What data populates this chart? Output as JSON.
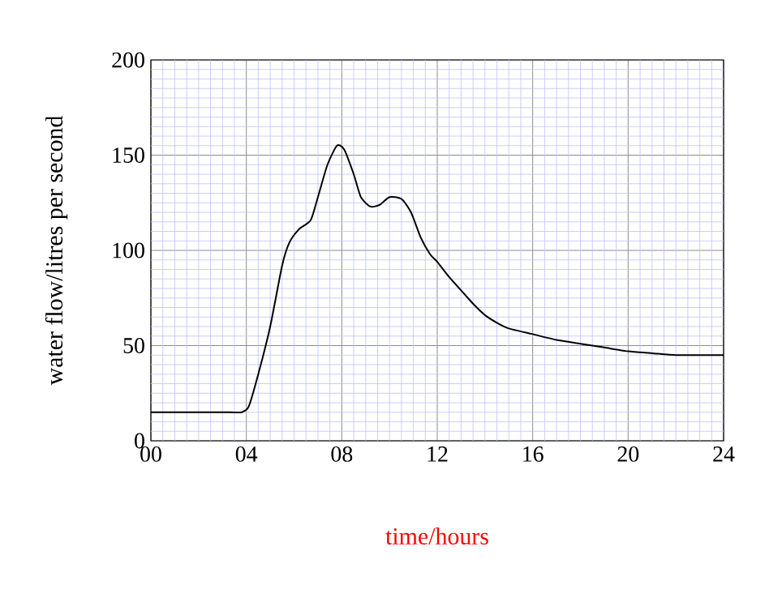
{
  "chart_data": {
    "type": "line",
    "xlabel": "time/hours",
    "ylabel": "water flow/litres per second",
    "x": [
      0,
      2,
      3.3,
      3.8,
      4.1,
      4.5,
      5,
      5.5,
      5.8,
      6.2,
      6.7,
      7,
      7.4,
      7.8,
      8.1,
      8.5,
      8.8,
      9.2,
      9.6,
      10,
      10.5,
      10.9,
      11.3,
      11.7,
      12,
      12.5,
      13,
      13.5,
      14,
      14.5,
      15,
      16,
      17,
      18,
      19,
      20,
      21,
      22,
      23,
      24
    ],
    "series": [
      {
        "color": "#000000",
        "values": [
          15,
          15,
          15,
          15,
          18,
          35,
          60,
          92,
          104,
          111,
          116,
          128,
          145,
          155,
          153,
          140,
          128,
          123,
          124,
          128,
          127,
          120,
          107,
          98,
          94,
          86,
          79,
          72,
          66,
          62,
          59,
          56,
          53,
          51,
          49,
          47,
          46,
          45,
          45,
          45
        ]
      }
    ],
    "xlim": [
      0,
      24
    ],
    "ylim": [
      0,
      200
    ],
    "xticks": [
      {
        "value": 0,
        "label": "00"
      },
      {
        "value": 0.5,
        "label": null
      },
      {
        "value": 1,
        "label": null
      },
      {
        "value": 1.5,
        "label": null
      },
      {
        "value": 2,
        "label": null
      },
      {
        "value": 2.5,
        "label": null
      },
      {
        "value": 3,
        "label": null
      },
      {
        "value": 3.5,
        "label": null
      },
      {
        "value": 4,
        "label": "04"
      },
      {
        "value": 4.5,
        "label": null
      },
      {
        "value": 5,
        "label": null
      },
      {
        "value": 5.5,
        "label": null
      },
      {
        "value": 6,
        "label": null
      },
      {
        "value": 6.5,
        "label": null
      },
      {
        "value": 7,
        "label": null
      },
      {
        "value": 7.5,
        "label": null
      },
      {
        "value": 8,
        "label": "08"
      },
      {
        "value": 8.5,
        "label": null
      },
      {
        "value": 9,
        "label": null
      },
      {
        "value": 9.5,
        "label": null
      },
      {
        "value": 10,
        "label": null
      },
      {
        "value": 10.5,
        "label": null
      },
      {
        "value": 11,
        "label": null
      },
      {
        "value": 11.5,
        "label": null
      },
      {
        "value": 12,
        "label": "12"
      },
      {
        "value": 12.5,
        "label": null
      },
      {
        "value": 13,
        "label": null
      },
      {
        "value": 13.5,
        "label": null
      },
      {
        "value": 14,
        "label": null
      },
      {
        "value": 14.5,
        "label": null
      },
      {
        "value": 15,
        "label": null
      },
      {
        "value": 15.5,
        "label": null
      },
      {
        "value": 16,
        "label": "16"
      },
      {
        "value": 16.5,
        "label": null
      },
      {
        "value": 17,
        "label": null
      },
      {
        "value": 17.5,
        "label": null
      },
      {
        "value": 18,
        "label": null
      },
      {
        "value": 18.5,
        "label": null
      },
      {
        "value": 19,
        "label": null
      },
      {
        "value": 19.5,
        "label": null
      },
      {
        "value": 20,
        "label": "20"
      },
      {
        "value": 20.5,
        "label": null
      },
      {
        "value": 21,
        "label": null
      },
      {
        "value": 21.5,
        "label": null
      },
      {
        "value": 22,
        "label": null
      },
      {
        "value": 22.5,
        "label": null
      },
      {
        "value": 23,
        "label": null
      },
      {
        "value": 23.5,
        "label": null
      },
      {
        "value": 24,
        "label": "24"
      }
    ],
    "yticks": [
      0,
      {
        "value": 5,
        "label": null
      },
      {
        "value": 10,
        "label": null
      },
      {
        "value": 15,
        "label": null
      },
      {
        "value": 20,
        "label": null
      },
      {
        "value": 25,
        "label": null
      },
      {
        "value": 30,
        "label": null
      },
      {
        "value": 35,
        "label": null
      },
      {
        "value": 40,
        "label": null
      },
      {
        "value": 45,
        "label": null
      },
      50,
      {
        "value": 55,
        "label": null
      },
      {
        "value": 60,
        "label": null
      },
      {
        "value": 65,
        "label": null
      },
      {
        "value": 70,
        "label": null
      },
      {
        "value": 75,
        "label": null
      },
      {
        "value": 80,
        "label": null
      },
      {
        "value": 85,
        "label": null
      },
      {
        "value": 90,
        "label": null
      },
      {
        "value": 95,
        "label": null
      },
      100,
      {
        "value": 105,
        "label": null
      },
      {
        "value": 110,
        "label": null
      },
      {
        "value": 115,
        "label": null
      },
      {
        "value": 120,
        "label": null
      },
      {
        "value": 125,
        "label": null
      },
      {
        "value": 130,
        "label": null
      },
      {
        "value": 135,
        "label": null
      },
      {
        "value": 140,
        "label": null
      },
      {
        "value": 145,
        "label": null
      },
      150,
      {
        "value": 155,
        "label": null
      },
      {
        "value": 160,
        "label": null
      },
      {
        "value": 165,
        "label": null
      },
      {
        "value": 170,
        "label": null
      },
      {
        "value": 175,
        "label": null
      },
      {
        "value": 180,
        "label": null
      },
      {
        "value": 185,
        "label": null
      },
      {
        "value": 190,
        "label": null
      },
      {
        "value": 195,
        "label": null
      },
      200
    ],
    "grid": true
  }
}
